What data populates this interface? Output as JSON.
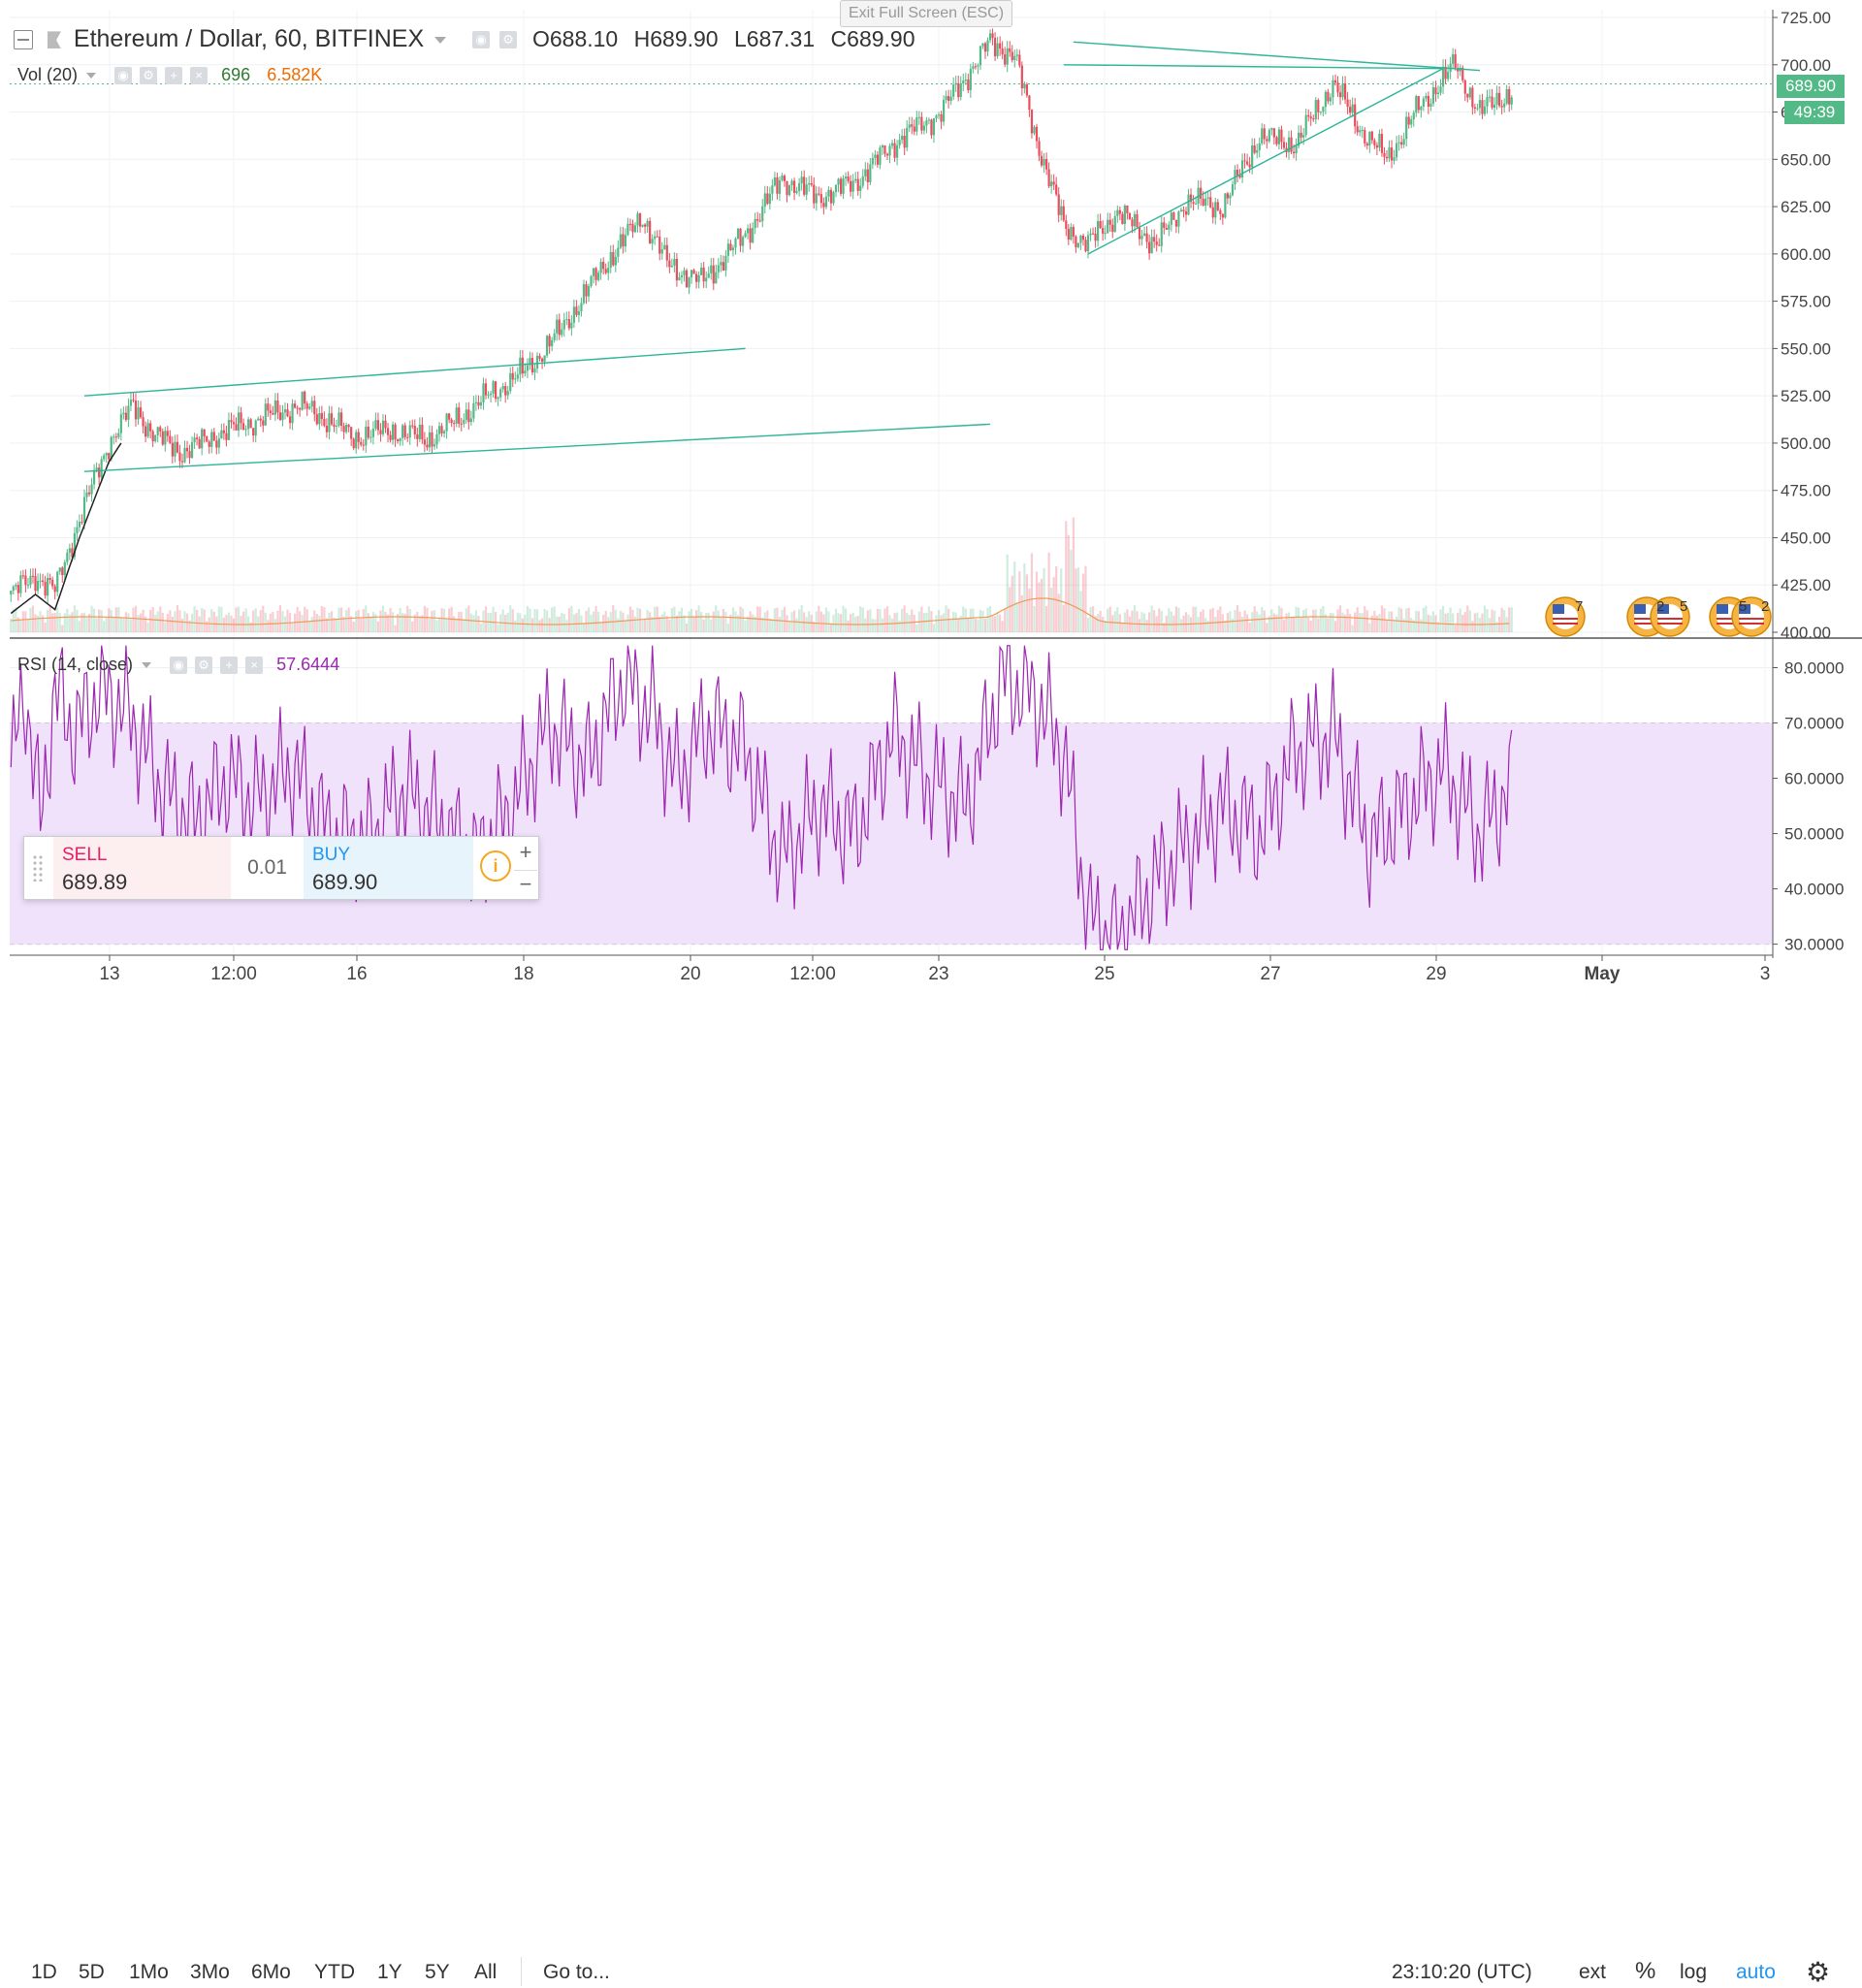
{
  "header": {
    "symbol": "Ethereum / Dollar, 60, BITFINEX",
    "open_label": "O",
    "open": "688.10",
    "high_label": "H",
    "high": "689.90",
    "low_label": "L",
    "low": "687.31",
    "close_label": "C",
    "close": "689.90"
  },
  "tooltip": "Exit Full Screen (ESC)",
  "volume": {
    "label": "Vol (20)",
    "value": "696",
    "ma": "6.582K"
  },
  "rsi": {
    "label": "RSI (14, close)",
    "value": "57.6444"
  },
  "price_axis": {
    "ticks": [
      "725.00",
      "700.00",
      "675.00",
      "650.00",
      "625.00",
      "600.00",
      "575.00",
      "550.00",
      "525.00",
      "500.00",
      "475.00",
      "450.00",
      "425.00",
      "400.00"
    ],
    "last_price": "689.90",
    "countdown": "49:39"
  },
  "rsi_axis": {
    "ticks": [
      "80.0000",
      "70.0000",
      "60.0000",
      "50.0000",
      "40.0000",
      "30.0000"
    ]
  },
  "time_axis": [
    "13",
    "12:00",
    "16",
    "18",
    "20",
    "12:00",
    "23",
    "25",
    "27",
    "29",
    "May",
    "3"
  ],
  "events": [
    "7",
    "2",
    "5",
    "5",
    "2"
  ],
  "trade_panel": {
    "sell_label": "SELL",
    "sell_price": "689.89",
    "spread": "0.01",
    "buy_label": "BUY",
    "buy_price": "689.90"
  },
  "bottom_bar": {
    "timeframes": [
      "1D",
      "5D",
      "1Mo",
      "3Mo",
      "6Mo",
      "YTD",
      "1Y",
      "5Y",
      "All"
    ],
    "goto": "Go to...",
    "clock": "23:10:20 (UTC)",
    "ext": "ext",
    "percent": "%",
    "log": "log",
    "auto": "auto"
  },
  "colors": {
    "up": "#53b987",
    "down": "#eb4d5c",
    "trend": "#2cb597",
    "rsi_line": "#9c27b0",
    "rsi_band": "#f0e2fb",
    "accent": "#2196f3",
    "price_label": "#53b987"
  },
  "chart_data": {
    "type": "candlestick",
    "price_range": [
      400,
      725
    ],
    "rsi_range": [
      28,
      85
    ],
    "rsi_band": [
      30,
      70
    ],
    "anchors": [
      [
        0,
        420
      ],
      [
        10,
        430
      ],
      [
        18,
        422
      ],
      [
        28,
        460
      ],
      [
        40,
        500
      ],
      [
        50,
        520
      ],
      [
        58,
        505
      ],
      [
        70,
        495
      ],
      [
        85,
        505
      ],
      [
        100,
        512
      ],
      [
        118,
        520
      ],
      [
        130,
        512
      ],
      [
        140,
        503
      ],
      [
        155,
        507
      ],
      [
        170,
        502
      ],
      [
        180,
        510
      ],
      [
        195,
        525
      ],
      [
        210,
        538
      ],
      [
        225,
        560
      ],
      [
        240,
        590
      ],
      [
        258,
        620
      ],
      [
        268,
        595
      ],
      [
        282,
        585
      ],
      [
        300,
        610
      ],
      [
        315,
        640
      ],
      [
        330,
        630
      ],
      [
        345,
        638
      ],
      [
        362,
        660
      ],
      [
        380,
        675
      ],
      [
        400,
        712
      ],
      [
        410,
        705
      ],
      [
        418,
        665
      ],
      [
        430,
        615
      ],
      [
        440,
        605
      ],
      [
        452,
        622
      ],
      [
        468,
        605
      ],
      [
        480,
        628
      ],
      [
        495,
        625
      ],
      [
        510,
        662
      ],
      [
        525,
        658
      ],
      [
        540,
        690
      ],
      [
        552,
        665
      ],
      [
        562,
        650
      ],
      [
        575,
        677
      ],
      [
        590,
        700
      ],
      [
        600,
        675
      ],
      [
        612,
        685
      ]
    ],
    "rsi_anchors": [
      [
        0,
        62
      ],
      [
        6,
        76
      ],
      [
        12,
        52
      ],
      [
        18,
        76
      ],
      [
        26,
        68
      ],
      [
        36,
        76
      ],
      [
        48,
        72
      ],
      [
        62,
        58
      ],
      [
        75,
        52
      ],
      [
        88,
        60
      ],
      [
        100,
        56
      ],
      [
        115,
        62
      ],
      [
        130,
        50
      ],
      [
        145,
        48
      ],
      [
        160,
        58
      ],
      [
        175,
        52
      ],
      [
        190,
        45
      ],
      [
        205,
        55
      ],
      [
        220,
        70
      ],
      [
        235,
        62
      ],
      [
        250,
        78
      ],
      [
        262,
        72
      ],
      [
        272,
        60
      ],
      [
        285,
        70
      ],
      [
        300,
        65
      ],
      [
        315,
        45
      ],
      [
        330,
        55
      ],
      [
        345,
        50
      ],
      [
        360,
        68
      ],
      [
        375,
        60
      ],
      [
        390,
        55
      ],
      [
        405,
        78
      ],
      [
        418,
        75
      ],
      [
        430,
        65
      ],
      [
        440,
        35
      ],
      [
        452,
        30
      ],
      [
        465,
        40
      ],
      [
        480,
        48
      ],
      [
        495,
        55
      ],
      [
        510,
        50
      ],
      [
        525,
        65
      ],
      [
        540,
        68
      ],
      [
        555,
        48
      ],
      [
        570,
        55
      ],
      [
        585,
        62
      ],
      [
        600,
        50
      ],
      [
        612,
        58
      ]
    ],
    "trendlines": [
      [
        30,
        525,
        300,
        550
      ],
      [
        30,
        485,
        400,
        510
      ],
      [
        430,
        700,
        585,
        698
      ],
      [
        440,
        600,
        585,
        698
      ],
      [
        434,
        712,
        600,
        697
      ]
    ]
  }
}
